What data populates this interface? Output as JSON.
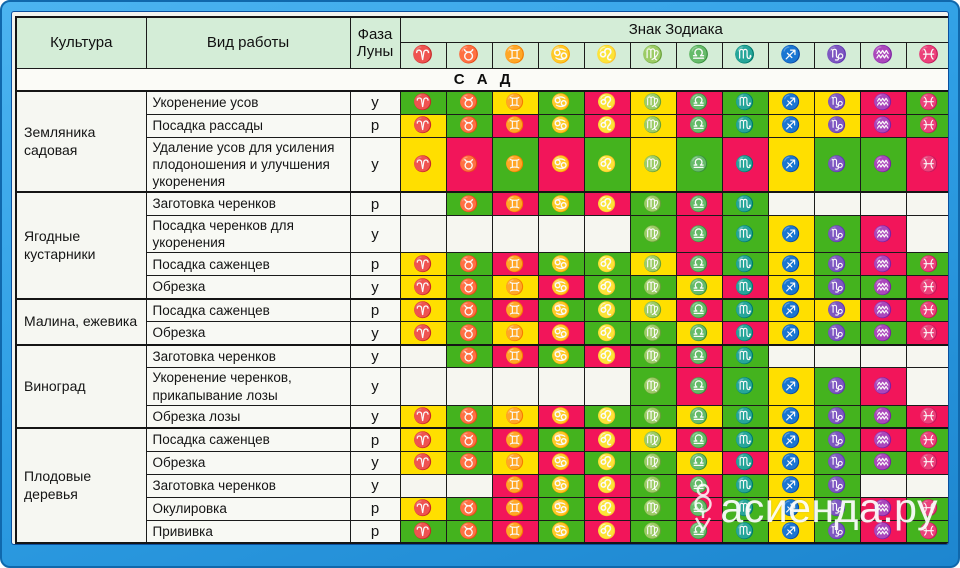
{
  "header": {
    "culture_label": "Культура",
    "work_label": "Вид работы",
    "phase_label": "Фаза Луны",
    "zodiac_title": "Знак Зодиака"
  },
  "section_title": "С А Д",
  "table": {
    "zodiac_symbols": [
      "♈",
      "♉",
      "♊",
      "♋",
      "♌",
      "♍",
      "♎",
      "♏",
      "♐",
      "♑",
      "♒",
      "♓"
    ],
    "colors": {
      "G": "#44b31e",
      "Y": "#ffdf00",
      "R": "#f2155a",
      "W": "#f6f6f0"
    },
    "groups": [
      {
        "culture": "Земляника садовая",
        "rows": [
          {
            "work": "Укоренение усов",
            "phase": "у",
            "cells": "GGYGRYRGYYRG"
          },
          {
            "work": "Посадка рассады",
            "phase": "р",
            "cells": "YGRGRYRGYYRG"
          },
          {
            "work": "Удаление усов для усиления плодоношения и улучшения укоренения",
            "phase": "у",
            "cells": "YRGRGYGRYGGR"
          }
        ]
      },
      {
        "culture": "Ягодные кустарники",
        "rows": [
          {
            "work": "Заготовка черенков",
            "phase": "р",
            "cells": "WGRGRGRGWWWW"
          },
          {
            "work": "Посадка черенков для укоренения",
            "phase": "у",
            "cells": "WWWWWGRGYGRW"
          },
          {
            "work": "Посадка саженцев",
            "phase": "р",
            "cells": "YGRGGYRGYGRG"
          },
          {
            "work": "Обрезка",
            "phase": "у",
            "cells": "YGYRGGYRYGGR"
          }
        ]
      },
      {
        "culture": "Малина, ежевика",
        "rows": [
          {
            "work": "Посадка саженцев",
            "phase": "р",
            "cells": "YGRGGYRGYYRG"
          },
          {
            "work": "Обрезка",
            "phase": "у",
            "cells": "YGYRGGYRYGGR"
          }
        ]
      },
      {
        "culture": "Виноград",
        "rows": [
          {
            "work": "Заготовка черенков",
            "phase": "у",
            "cells": "WGRGRGRGWWWW"
          },
          {
            "work": "Укоренение черенков, прикапывание лозы",
            "phase": "у",
            "cells": "WWWWWGRGYGRW"
          },
          {
            "work": "Обрезка лозы",
            "phase": "у",
            "cells": "YGYRGGYGYGGR"
          }
        ]
      },
      {
        "culture": "Плодовые деревья",
        "rows": [
          {
            "work": "Посадка саженцев",
            "phase": "р",
            "cells": "YGRGRYRGYGRG"
          },
          {
            "work": "Обрезка",
            "phase": "у",
            "cells": "YGYRGGYRYGGR"
          },
          {
            "work": "Заготовка черенков",
            "phase": "у",
            "cells": "WWRGRGRGYGWW"
          },
          {
            "work": "Окулировка",
            "phase": "р",
            "cells": "YGRGRGRGYGRG"
          },
          {
            "work": "Прививка",
            "phase": "р",
            "cells": "GGRGRGRGYGRG"
          }
        ]
      }
    ]
  },
  "watermark": {
    "text": "асиенда.ру",
    "icon": "shovel"
  }
}
